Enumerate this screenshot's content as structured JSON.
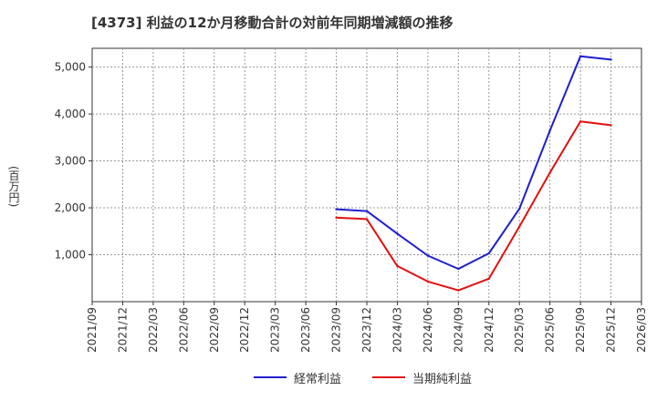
{
  "chart_data": {
    "type": "line",
    "title": "[4373]  利益の12か月移動合計の対前年同期増減額の推移",
    "ylabel": "(百万円)",
    "xlabel": "",
    "x": [
      "2021/09",
      "2021/12",
      "2022/03",
      "2022/06",
      "2022/09",
      "2022/12",
      "2023/03",
      "2023/06",
      "2023/09",
      "2023/12",
      "2024/03",
      "2024/06",
      "2024/09",
      "2024/12",
      "2025/03",
      "2025/06",
      "2025/09",
      "2025/12",
      "2026/03"
    ],
    "ylim": [
      0,
      5400
    ],
    "yticks": [
      1000,
      2000,
      3000,
      4000,
      5000
    ],
    "ytick_labels": [
      "1,000",
      "2,000",
      "3,000",
      "4,000",
      "5,000"
    ],
    "grid": true,
    "series": [
      {
        "name": "経常利益",
        "color": "#1f1fcc",
        "values": [
          null,
          null,
          null,
          null,
          null,
          null,
          null,
          null,
          1970,
          1930,
          1450,
          980,
          700,
          1030,
          1980,
          3650,
          5230,
          5160,
          null
        ]
      },
      {
        "name": "当期純利益",
        "color": "#e01010",
        "values": [
          null,
          null,
          null,
          null,
          null,
          null,
          null,
          null,
          1790,
          1760,
          760,
          430,
          240,
          490,
          1600,
          2750,
          3840,
          3760,
          null
        ]
      }
    ]
  }
}
